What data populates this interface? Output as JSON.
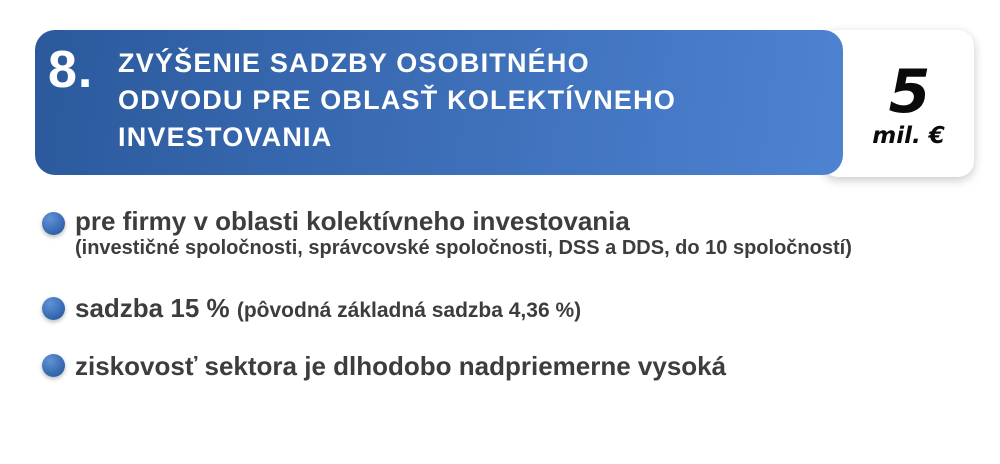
{
  "colors": {
    "banner_grad_start": "#2b599c",
    "banner_grad_end": "#4e83d2",
    "bullet_light": "#5f92d6",
    "bullet_dark": "#2d5fa6",
    "body_text": "#3d3d3d",
    "title_text": "#ffffff",
    "amount_text": "#0a0a0a",
    "card_bg": "#ffffff",
    "page_bg": "#ffffff"
  },
  "header": {
    "number": "8.",
    "title": "ZVÝŠENIE SADZBY OSOBITNÉHO ODVODU PRE OBLASŤ KOLEKTÍVNEHO INVESTOVANIA",
    "title_lines": [
      "ZVÝŠENIE SADZBY OSOBITNÉHO",
      "ODVODU PRE OBLASŤ KOLEKTÍVNEHO",
      "INVESTOVANIA"
    ],
    "amount_value": "5",
    "amount_unit": "mil. €"
  },
  "bullets": [
    {
      "main": "pre firmy v oblasti kolektívneho investovania",
      "sub": "(investičné spoločnosti, správcovské spoločnosti, DSS a DDS, do 10 spoločností)"
    },
    {
      "main": "sadzba 15 % ",
      "note": "(pôvodná základná sadzba 4,36 %)"
    },
    {
      "main": "ziskovosť sektora je dlhodobo nadpriemerne vysoká"
    }
  ]
}
